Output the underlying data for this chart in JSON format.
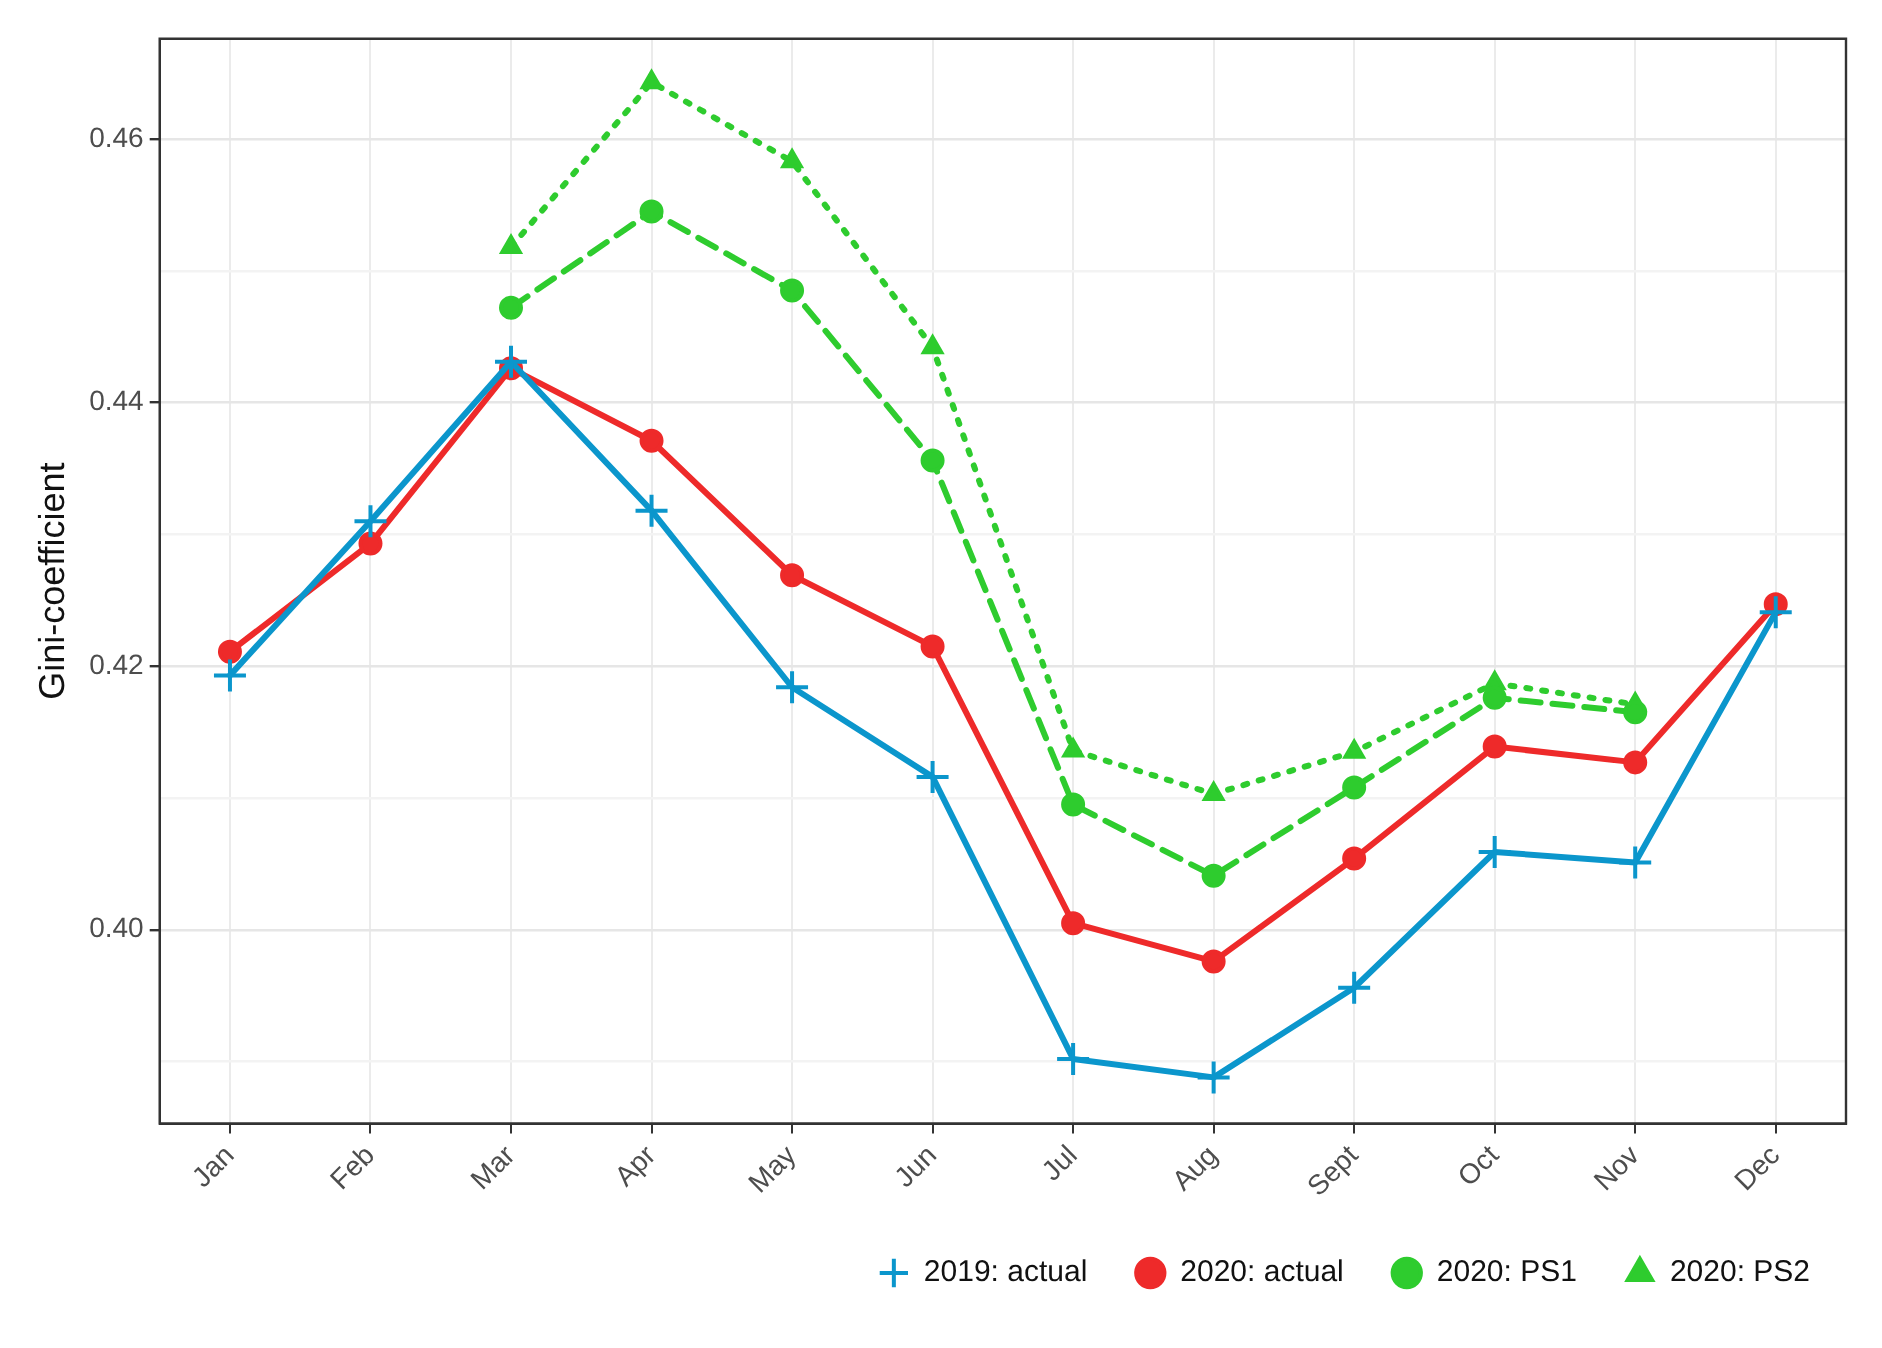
{
  "chart_data": {
    "type": "line",
    "ylabel": "Gini-coefficient",
    "categories": [
      "Jan",
      "Feb",
      "Mar",
      "Apr",
      "May",
      "Jun",
      "Jul",
      "Aug",
      "Sept",
      "Oct",
      "Nov",
      "Dec"
    ],
    "series": [
      {
        "name": "2019: actual",
        "color": "#0b96cc",
        "marker": "cross",
        "line_style": "solid",
        "values": [
          0.4193,
          0.431,
          0.4431,
          0.4318,
          0.4184,
          0.4116,
          0.3902,
          0.3888,
          0.3956,
          0.4059,
          0.4051,
          0.4241
        ]
      },
      {
        "name": "2020: actual",
        "color": "#ee2a2a",
        "marker": "circle",
        "line_style": "solid",
        "values": [
          0.4211,
          0.4293,
          0.4426,
          0.4371,
          0.4269,
          0.4215,
          0.4005,
          0.3976,
          0.4054,
          0.4139,
          0.4127,
          0.4247
        ]
      },
      {
        "name": "2020: PS1",
        "color": "#2ecc2e",
        "marker": "circle",
        "line_style": "dashed",
        "values": [
          null,
          null,
          0.4472,
          0.4545,
          0.4485,
          0.4356,
          0.4095,
          0.4041,
          0.4108,
          0.4176,
          0.4165,
          null
        ]
      },
      {
        "name": "2020: PS2",
        "color": "#2ecc2e",
        "marker": "triangle",
        "line_style": "dotted",
        "values": [
          null,
          null,
          0.4518,
          0.4643,
          0.4583,
          0.4442,
          0.4136,
          0.4103,
          0.4135,
          0.4187,
          0.4171,
          null
        ]
      }
    ],
    "ylim": [
      0.3853,
      0.4676
    ],
    "yticks": [
      {
        "value": 0.39,
        "label": null
      },
      {
        "value": 0.4,
        "label": "0.40"
      },
      {
        "value": 0.41,
        "label": null
      },
      {
        "value": 0.42,
        "label": "0.42"
      },
      {
        "value": 0.43,
        "label": null
      },
      {
        "value": 0.44,
        "label": "0.44"
      },
      {
        "value": 0.45,
        "label": null
      },
      {
        "value": 0.46,
        "label": "0.46"
      }
    ],
    "grid": true,
    "legend": "bottom"
  }
}
